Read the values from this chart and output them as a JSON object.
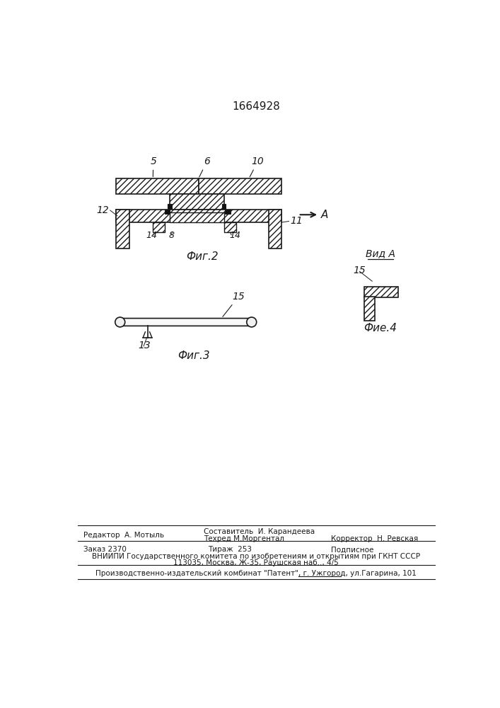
{
  "patent_number": "1664928",
  "bg_color": "#ffffff",
  "line_color": "#1a1a1a",
  "fig2_label": "Фиг.2",
  "fig3_label": "Фиг.3",
  "fig4_label": "Фие.4",
  "view_a_label": "Вид A",
  "footer_editor": "Редактор  А. Мотыль",
  "footer_compiler": "Составитель  И. Карандеева",
  "footer_techred": "Техред М.Моргентал",
  "footer_corrector": "Корректор  Н. Ревская",
  "footer_order": "Заказ 2370",
  "footer_tirazh": "Тираж  253",
  "footer_podp": "Подписное",
  "footer_vniip": "ВНИИПИ Государственного комитета по изобретениям и открытиям при ГКНТ СССР",
  "footer_addr": "113035, Москва, Ж-35, Раушская наб.., 4/5",
  "footer_patent": "Производственно-издательский комбинат \"Патент\", г. Ужгород, ул.Гагарина, 101"
}
